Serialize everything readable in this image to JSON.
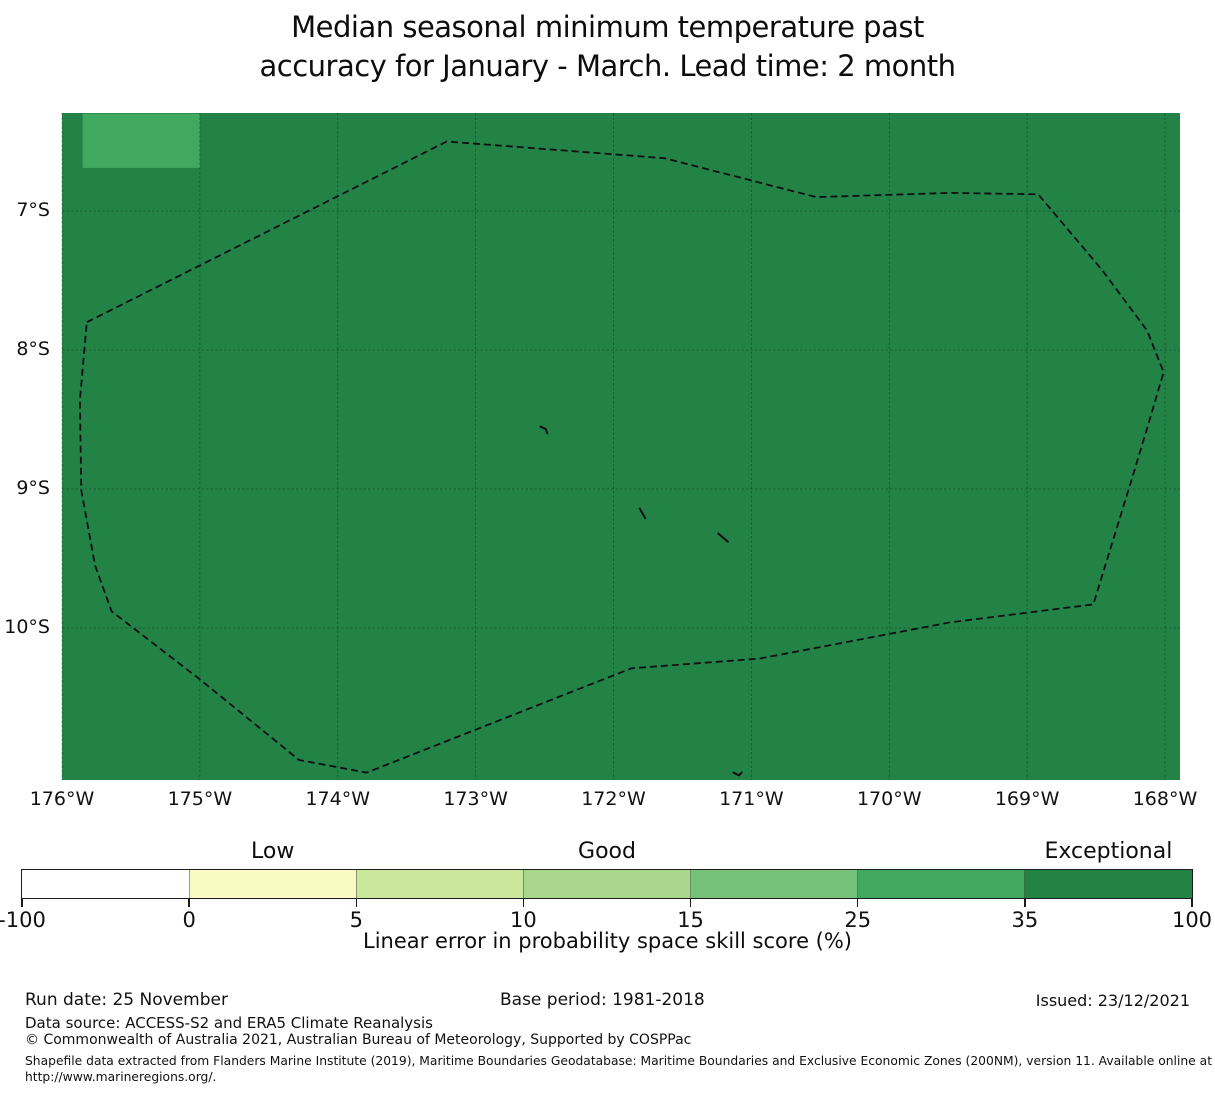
{
  "title": {
    "line1": "Median seasonal minimum temperature past",
    "line2": "accuracy for January - March. Lead time: 2 month"
  },
  "axes": {
    "x_ticks": [
      {
        "label": "176°W",
        "lon": 176
      },
      {
        "label": "175°W",
        "lon": 175
      },
      {
        "label": "174°W",
        "lon": 174
      },
      {
        "label": "173°W",
        "lon": 173
      },
      {
        "label": "172°W",
        "lon": 172
      },
      {
        "label": "171°W",
        "lon": 171
      },
      {
        "label": "170°W",
        "lon": 170
      },
      {
        "label": "169°W",
        "lon": 169
      },
      {
        "label": "168°W",
        "lon": 168
      }
    ],
    "y_ticks": [
      {
        "label": "7°S",
        "lat": 7
      },
      {
        "label": "8°S",
        "lat": 8
      },
      {
        "label": "9°S",
        "lat": 9
      },
      {
        "label": "10°S",
        "lat": 10
      }
    ]
  },
  "colorbar": {
    "category_labels": [
      {
        "text": "Low",
        "segment_index": 1
      },
      {
        "text": "Good",
        "segment_index": 3
      },
      {
        "text": "Exceptional",
        "segment_index": 6
      }
    ],
    "segments": [
      {
        "from": -100,
        "to": 0,
        "color": "#ffffff"
      },
      {
        "from": 0,
        "to": 5,
        "color": "#fafac3"
      },
      {
        "from": 5,
        "to": 10,
        "color": "#cbe79c"
      },
      {
        "from": 10,
        "to": 15,
        "color": "#a8d78c"
      },
      {
        "from": 15,
        "to": 25,
        "color": "#74c27a"
      },
      {
        "from": 25,
        "to": 35,
        "color": "#41a85f"
      },
      {
        "from": 35,
        "to": 100,
        "color": "#238347"
      }
    ],
    "tick_labels": [
      "-100",
      "0",
      "5",
      "10",
      "15",
      "25",
      "35",
      "100"
    ],
    "caption": "Linear error in probability space skill score (%)"
  },
  "footer": {
    "run_date": "Run date: 25 November",
    "base_period": "Base period: 1981-2018",
    "issued": "Issued: 23/12/2021",
    "data_source": "Data source: ACCESS-S2 and ERA5 Climate Reanalysis",
    "copyright": "© Commonwealth of Australia 2021, Australian Bureau of Meteorology, Supported by COSPPac",
    "shapefile_line1": "Shapefile data extracted from Flanders Marine Institute (2019), Maritime Boundaries Geodatabase: Maritime Boundaries and Exclusive Economic Zones (200NM), version 11. Available online at",
    "shapefile_line2": "http://www.marineregions.org/."
  },
  "chart_data": {
    "type": "map",
    "title": "Median seasonal minimum temperature past accuracy for January - March. Lead time: 2 month",
    "variable": "Linear error in probability space skill score (%)",
    "x_axis": {
      "tick_labels": [
        "176°W",
        "175°W",
        "174°W",
        "173°W",
        "172°W",
        "171°W",
        "170°W",
        "169°W",
        "168°W"
      ],
      "range_deg_west": [
        176,
        167.9
      ]
    },
    "y_axis": {
      "tick_labels": [
        "7°S",
        "8°S",
        "9°S",
        "10°S"
      ],
      "range_deg_south": [
        6.3,
        11.09
      ]
    },
    "color_scale": {
      "boundaries": [
        -100,
        0,
        5,
        10,
        15,
        25,
        35,
        100
      ],
      "colors": [
        "#ffffff",
        "#fafac3",
        "#cbe79c",
        "#a8d78c",
        "#74c27a",
        "#41a85f",
        "#238347"
      ],
      "category_labels": [
        "Low",
        "Good",
        "Exceptional"
      ]
    },
    "region_fill": {
      "skill_range": "35-100",
      "category": "Exceptional",
      "color": "#238347"
    },
    "highlight_cell": {
      "lon_west": [
        175.85,
        175.0
      ],
      "lat_south": [
        6.3,
        6.69
      ],
      "skill_range": "25-35",
      "color": "#41a85f"
    },
    "eez_boundary": [
      [
        175.82,
        7.8
      ],
      [
        173.21,
        6.5
      ],
      [
        171.63,
        6.62
      ],
      [
        170.53,
        6.9
      ],
      [
        169.56,
        6.87
      ],
      [
        168.92,
        6.88
      ],
      [
        168.46,
        7.42
      ],
      [
        168.13,
        7.86
      ],
      [
        168.01,
        8.16
      ],
      [
        168.12,
        8.53
      ],
      [
        168.22,
        8.86
      ],
      [
        168.34,
        9.25
      ],
      [
        168.52,
        9.83
      ],
      [
        169.56,
        9.96
      ],
      [
        170.94,
        10.22
      ],
      [
        171.87,
        10.29
      ],
      [
        173.79,
        11.04
      ],
      [
        174.28,
        10.95
      ],
      [
        175.0,
        10.37
      ],
      [
        175.64,
        9.88
      ],
      [
        175.76,
        9.55
      ],
      [
        175.86,
        9.01
      ],
      [
        175.87,
        8.36
      ]
    ],
    "island_marks": [
      [
        [
          172.53,
          8.55
        ],
        [
          172.49,
          8.57
        ],
        [
          172.48,
          8.6
        ]
      ],
      [
        [
          171.81,
          9.14
        ],
        [
          171.77,
          9.21
        ]
      ],
      [
        [
          171.24,
          9.32
        ],
        [
          171.17,
          9.38
        ]
      ],
      [
        [
          171.13,
          11.04
        ],
        [
          171.09,
          11.06
        ],
        [
          171.07,
          11.04
        ]
      ]
    ]
  }
}
